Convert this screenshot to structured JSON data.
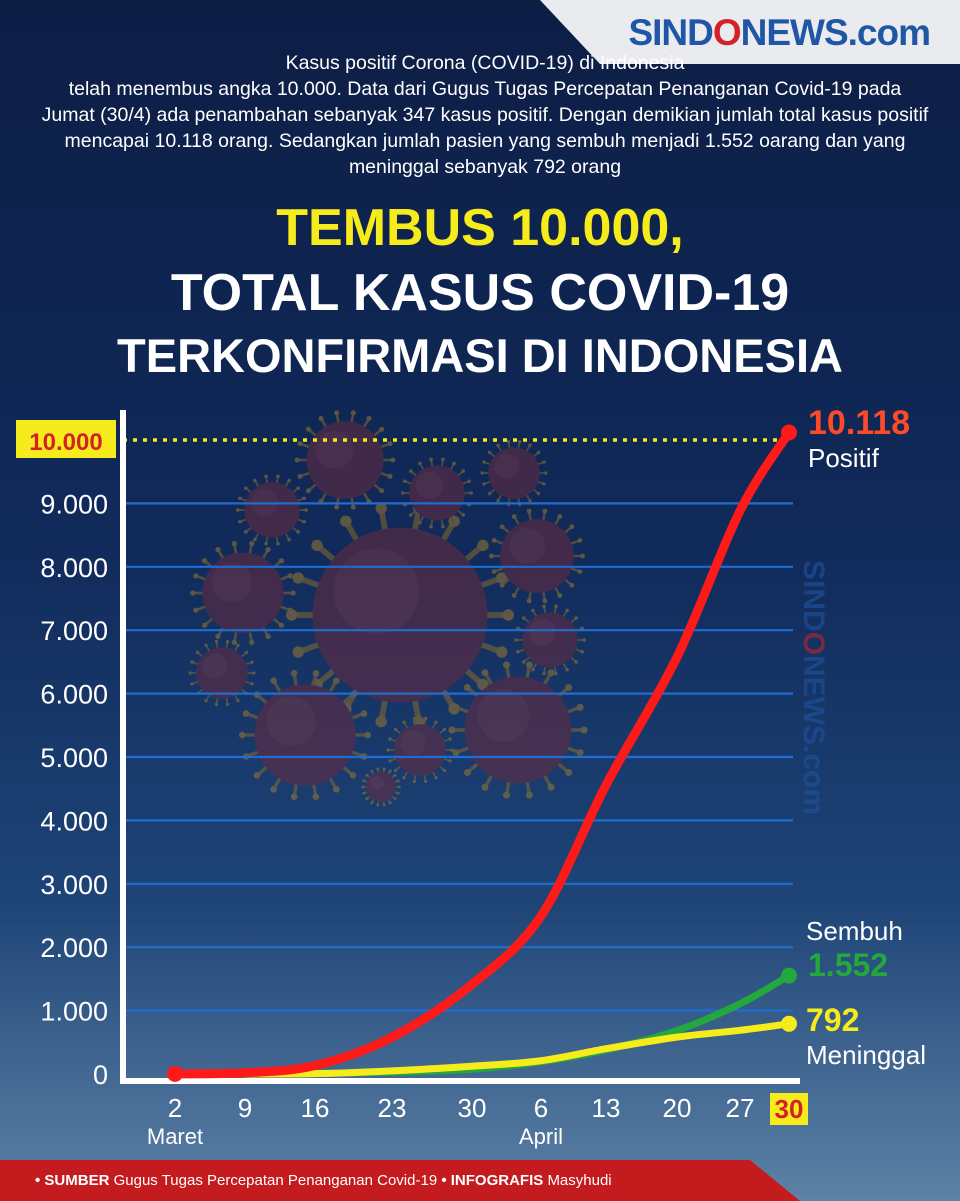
{
  "brand": {
    "logo_part1": "SIND",
    "logo_part2": "O",
    "logo_part3": "NEWS.com"
  },
  "intro": "Kasus positif Corona (COVID-19) di Indonesia\ntelah menembus angka 10.000. Data dari Gugus Tugas Percepatan Penanganan Covid-19 pada Jumat (30/4) ada penambahan sebanyak 347 kasus positif. Dengan demikian jumlah total kasus positif mencapai 10.118 orang. Sedangkan jumlah pasien yang sembuh menjadi 1.552 oarang dan yang meninggal sebanyak 792 orang",
  "headline": {
    "line1": "TEMBUS 10.000,",
    "line2": "TOTAL KASUS COVID-19",
    "line3": "TERKONFIRMASI DI INDONESIA"
  },
  "chart_data": {
    "type": "line",
    "categories": [
      "2",
      "9",
      "16",
      "23",
      "30",
      "6",
      "13",
      "20",
      "27",
      "30"
    ],
    "month_labels": [
      "Maret",
      "April"
    ],
    "highlight_category": "30",
    "ylim": [
      0,
      10000
    ],
    "yticks": [
      "0",
      "1.000",
      "2.000",
      "3.000",
      "4.000",
      "5.000",
      "6.000",
      "7.000",
      "8.000",
      "9.000"
    ],
    "reference_line": {
      "value": 10000,
      "label": "10.000"
    },
    "grid": true,
    "series": [
      {
        "name": "Positif",
        "color": "#ff1a1a",
        "values": [
          2,
          19,
          134,
          579,
          1414,
          2491,
          4557,
          6575,
          8882,
          10118
        ],
        "end_label": "10.118",
        "label_color": "#ff4a2a"
      },
      {
        "name": "Sembuh",
        "color": "#22a83c",
        "values": [
          0,
          0,
          8,
          30,
          75,
          192,
          380,
          686,
          1107,
          1552
        ],
        "end_label": "1.552",
        "label_color": "#22a83c"
      },
      {
        "name": "Meninggal",
        "color": "#f7ec1b",
        "values": [
          0,
          0,
          5,
          49,
          122,
          209,
          399,
          582,
          689,
          792
        ],
        "end_label": "792",
        "label_color": "#f7ec1b"
      }
    ]
  },
  "footer": {
    "source_label": "• SUMBER",
    "source_text": "Gugus Tugas Percepatan Penanganan Covid-19",
    "sep": "•",
    "credit_label": "INFOGRAFIS",
    "credit_text": "Masyhudi"
  },
  "colors": {
    "accent_yellow": "#f7ec1b",
    "grid_blue": "#1f6dd0",
    "footer_red": "#c41b1f"
  }
}
